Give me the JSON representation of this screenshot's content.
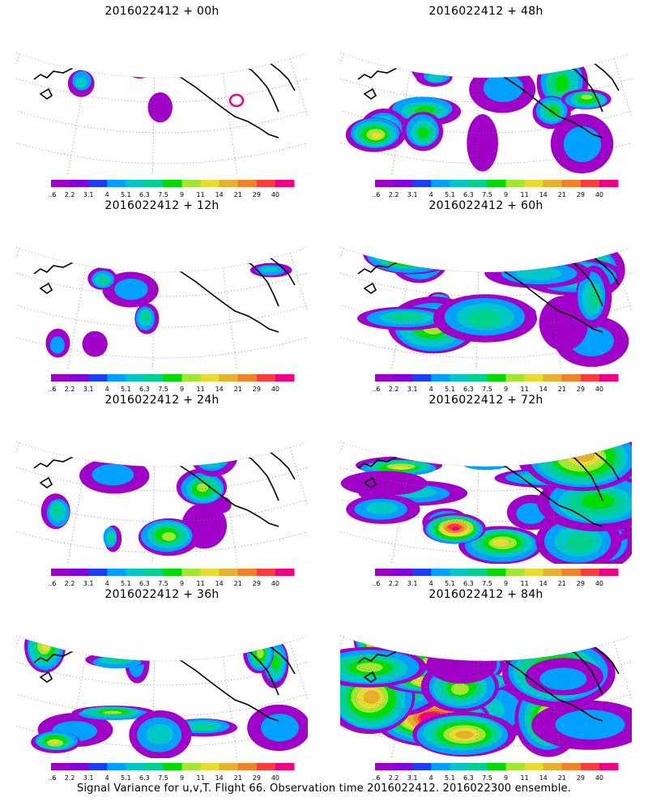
{
  "footer": "Signal Variance for u,v,T. Flight 66. Observation time 2016022412. 2016022300 ensemble.",
  "chart_data": {
    "type": "heatmap",
    "base_time": "2016022412",
    "variables": [
      "u",
      "v",
      "T"
    ],
    "flight": 66,
    "ensemble": "2016022300",
    "colorbar": {
      "levels": [
        "1.6",
        "2.2",
        "3.1",
        "4",
        "5.1",
        "6.3",
        "7.5",
        "9",
        "11",
        "14",
        "21",
        "29",
        "40"
      ],
      "colors": [
        "#a000c8",
        "#8200dc",
        "#1e3cff",
        "#00a0ff",
        "#00c8c8",
        "#00d28c",
        "#00dc00",
        "#a0e632",
        "#e6dc32",
        "#e6af2d",
        "#f08228",
        "#fa3c3c",
        "#f00082"
      ]
    },
    "panels": [
      {
        "label": "2016022412 + 00h",
        "lead_hours": 0
      },
      {
        "label": "2016022412 + 48h",
        "lead_hours": 48
      },
      {
        "label": "2016022412 + 12h",
        "lead_hours": 12
      },
      {
        "label": "2016022412 + 60h",
        "lead_hours": 60
      },
      {
        "label": "2016022412 + 24h",
        "lead_hours": 24
      },
      {
        "label": "2016022412 + 72h",
        "lead_hours": 72
      },
      {
        "label": "2016022412 + 36h",
        "lead_hours": 36
      },
      {
        "label": "2016022412 + 84h",
        "lead_hours": 84
      }
    ]
  }
}
